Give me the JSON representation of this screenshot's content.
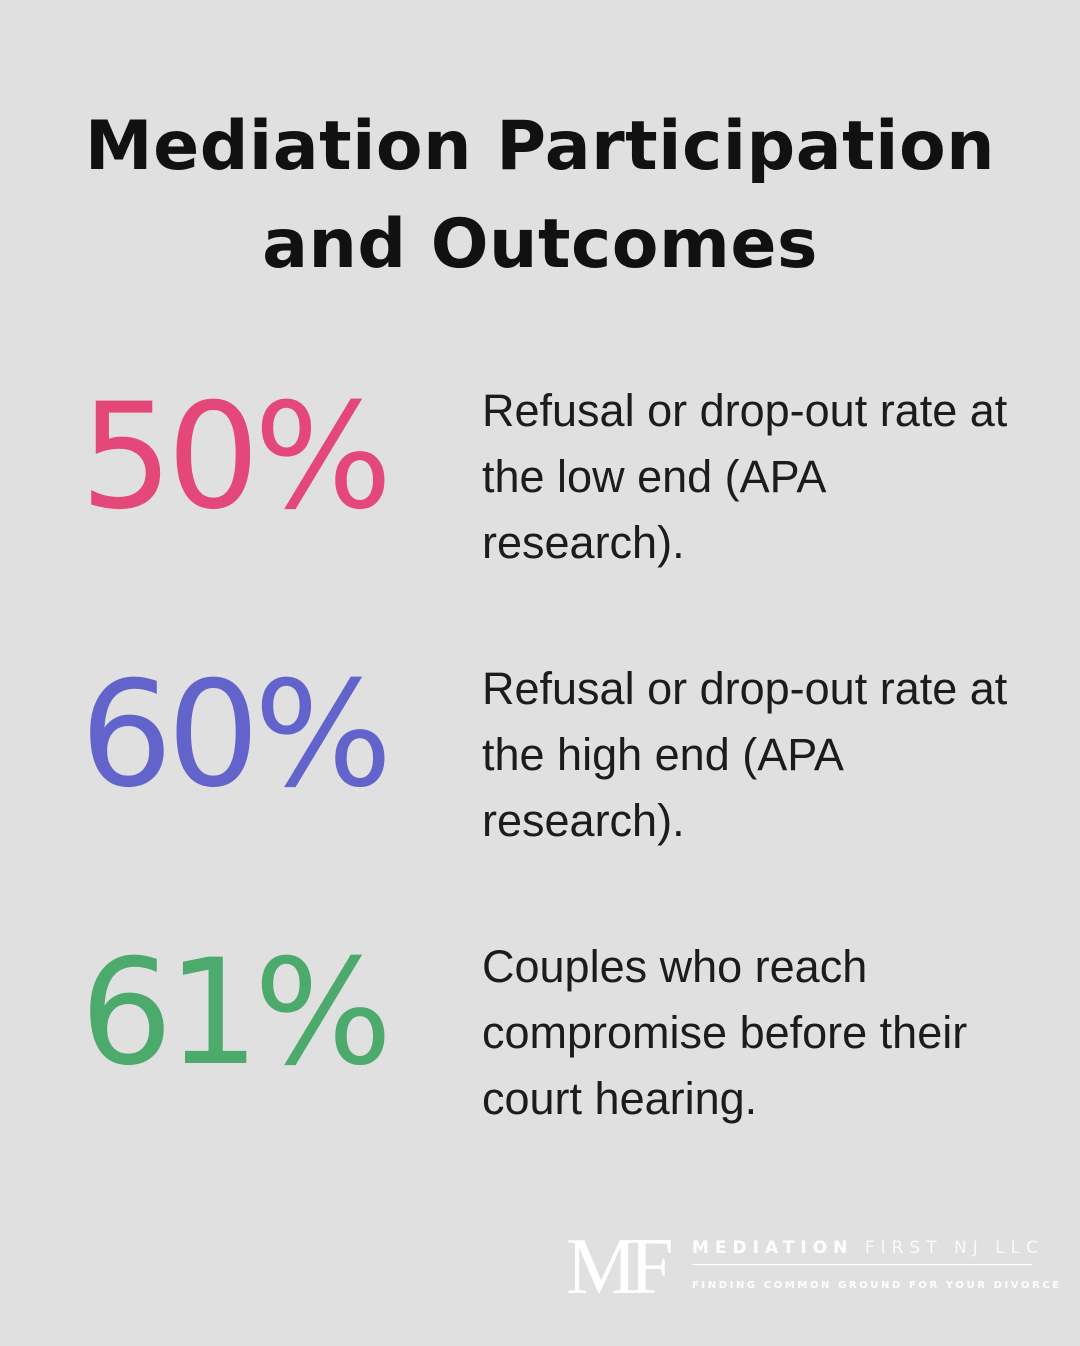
{
  "title": {
    "line1": "Mediation Participation",
    "line2": "and Outcomes"
  },
  "stats": [
    {
      "value": "50%",
      "color": "#e4477a",
      "description": "Refusal or drop-out rate at the low end (APA research)."
    },
    {
      "value": "60%",
      "color": "#6264cc",
      "description": "Refusal or drop-out rate at the high end (APA research)."
    },
    {
      "value": "61%",
      "color": "#4caa6c",
      "description": "Couples who reach compromise before their court hearing."
    }
  ],
  "logo": {
    "monogram": "MF",
    "name_bold": "MEDIATION",
    "name_light": "FIRST NJ LLC",
    "tagline": "FINDING COMMON GROUND FOR YOUR DIVORCE"
  }
}
